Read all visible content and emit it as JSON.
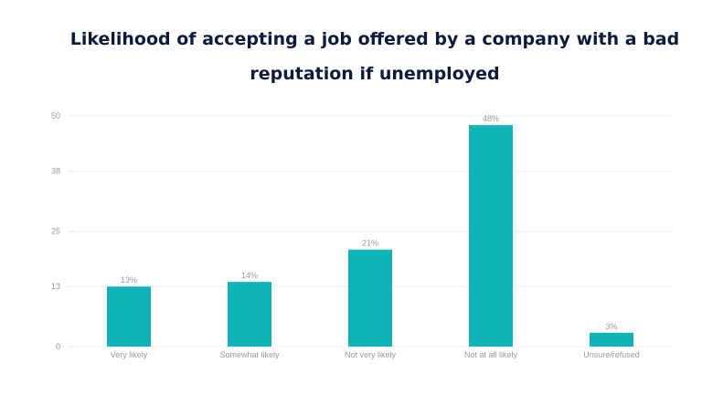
{
  "chart_data": {
    "type": "bar",
    "title_lines": [
      "Likelihood of accepting a job offered by a company with a bad",
      "reputation if unemployed"
    ],
    "categories": [
      "Very likely",
      "Somewhat likely",
      "Not very likely",
      "Not at all likely",
      "Unsure/refused"
    ],
    "values": [
      13,
      14,
      21,
      48,
      3
    ],
    "data_labels": [
      "13%",
      "14%",
      "21%",
      "48%",
      "3%"
    ],
    "y_ticks": [
      "0",
      "13",
      "25",
      "38",
      "50"
    ],
    "ylim": [
      0,
      50
    ],
    "xlabel": "",
    "ylabel": "",
    "grid": true,
    "legend": "none",
    "colors": {
      "bar": "#10b3b7",
      "grid": "#efefef",
      "tick_text": "#9a9a9a",
      "title": "#0d1b3d"
    }
  }
}
